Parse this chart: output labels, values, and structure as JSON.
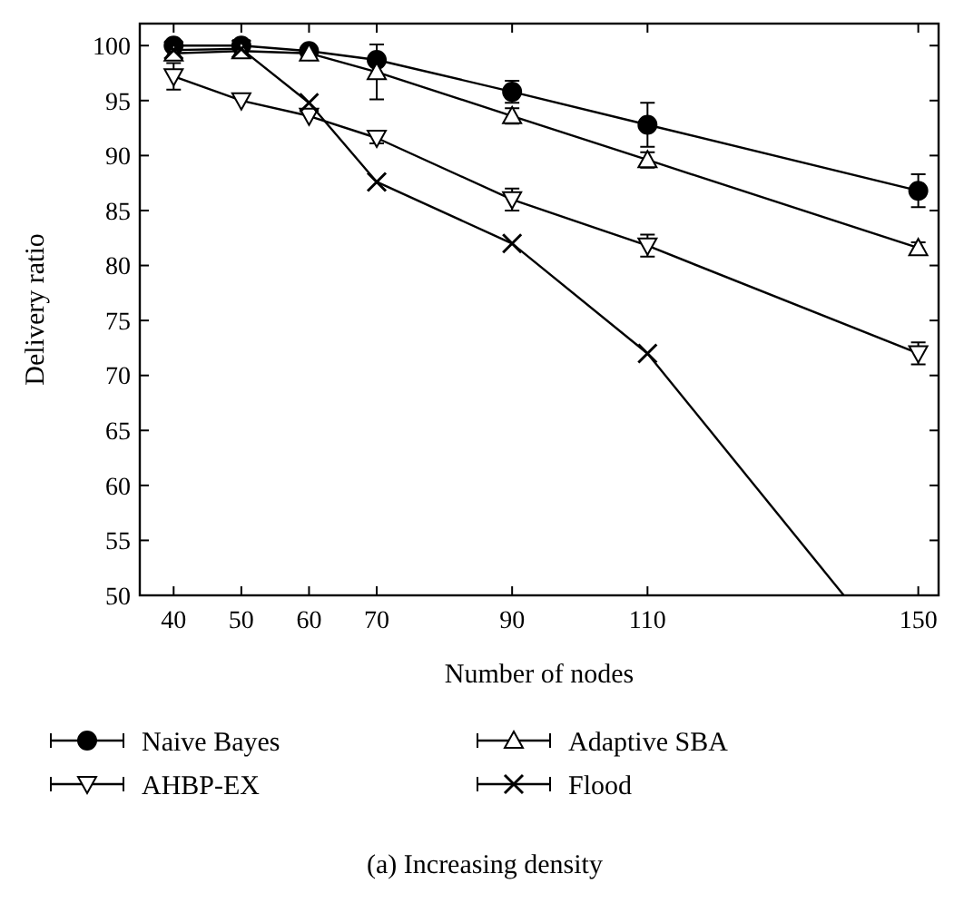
{
  "chart_data": {
    "type": "line",
    "xlabel": "Number of nodes",
    "ylabel": "Delivery ratio",
    "annotations": [
      "(a) Increasing density"
    ],
    "x": [
      40,
      50,
      60,
      70,
      90,
      110,
      150
    ],
    "xlim": [
      35,
      153
    ],
    "xticks": [
      40,
      50,
      60,
      70,
      90,
      110,
      150
    ],
    "ylim": [
      50,
      102
    ],
    "yticks": [
      50,
      55,
      60,
      65,
      70,
      75,
      80,
      85,
      90,
      95,
      100
    ],
    "legend": "bottom",
    "grid": false,
    "line_style": "solid",
    "series": [
      {
        "name": "Naive Bayes",
        "color": "#000000",
        "marker": "circle",
        "values": [
          100,
          100,
          99.5,
          98.7,
          95.8,
          92.8,
          86.8
        ],
        "errors": [
          null,
          null,
          null,
          null,
          1,
          2,
          1.5
        ]
      },
      {
        "name": "Adaptive SBA",
        "color": "#000000",
        "marker": "triangle",
        "values": [
          99.3,
          99.5,
          99.3,
          97.6,
          93.6,
          89.6,
          81.6
        ],
        "errors": [
          null,
          null,
          null,
          2.5,
          0.7,
          0.7,
          0.5
        ]
      },
      {
        "name": "AHBP-EX",
        "color": "#000000",
        "marker": "triangle-down",
        "values": [
          97.2,
          95,
          93.6,
          91.6,
          86,
          81.8,
          72
        ],
        "errors": [
          1.2,
          null,
          null,
          0.5,
          1,
          1,
          1
        ]
      },
      {
        "name": "Flood",
        "color": "#000000",
        "marker": "cross",
        "values": [
          99.6,
          99.7,
          94.8,
          87.6,
          82,
          72,
          null
        ]
      },
      {
        "type": "line",
        "color": "#000000",
        "marker": "none",
        "x": [
          110,
          139
        ],
        "values": [
          72,
          50
        ]
      }
    ]
  }
}
